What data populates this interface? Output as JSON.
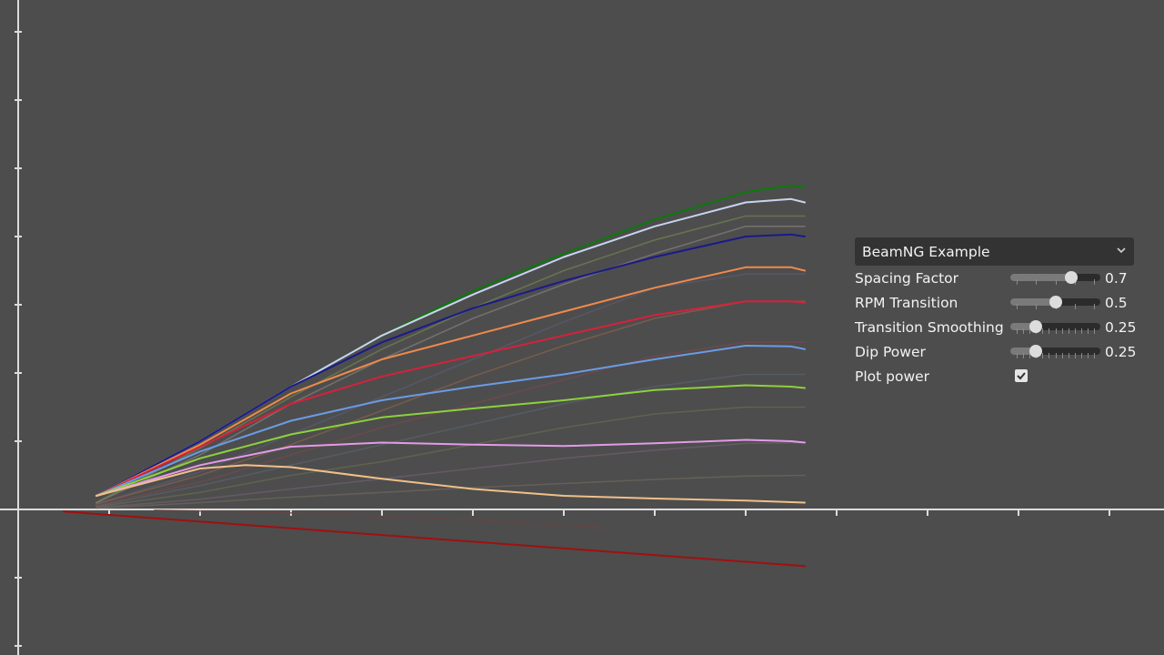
{
  "panel": {
    "dropdown_value": "BeamNG Example",
    "dropdown_icon": "chevron-down-icon",
    "params": [
      {
        "label": "Spacing Factor",
        "value": "0.7",
        "level": 0.7,
        "ticks": 4
      },
      {
        "label": "RPM Transition",
        "value": "0.5",
        "level": 0.5,
        "ticks": 4
      },
      {
        "label": "Transition Smoothing",
        "value": "0.25",
        "level": 0.25,
        "ticks": 12
      },
      {
        "label": "Dip Power",
        "value": "0.25",
        "level": 0.25,
        "ticks": 12
      }
    ],
    "plot_power": {
      "label": "Plot power",
      "checked": true
    }
  },
  "chart_data": {
    "type": "line",
    "title": "",
    "xlabel": "",
    "ylabel": "",
    "grid": false,
    "xlim": [
      0,
      12
    ],
    "ylim": [
      -2,
      7
    ],
    "series": [
      {
        "color": "#0a7a0a",
        "x": [
          0.86,
          2,
          3,
          4,
          5,
          6,
          7,
          8,
          8.5,
          8.65
        ],
        "y": [
          0.2,
          1.0,
          1.8,
          2.55,
          3.2,
          3.75,
          4.25,
          4.65,
          4.75,
          4.72
        ]
      },
      {
        "color": "#c8d4f0",
        "x": [
          0.86,
          2,
          3,
          4,
          5,
          6,
          7,
          8,
          8.5,
          8.65
        ],
        "y": [
          0.2,
          1.0,
          1.8,
          2.55,
          3.15,
          3.7,
          4.15,
          4.5,
          4.55,
          4.5
        ]
      },
      {
        "color": "#1a1a8c",
        "x": [
          0.86,
          2,
          3,
          4,
          5,
          6,
          7,
          8,
          8.5,
          8.65
        ],
        "y": [
          0.2,
          1.0,
          1.8,
          2.45,
          2.95,
          3.35,
          3.7,
          4.0,
          4.03,
          4.0
        ]
      },
      {
        "color": "#f08a4b",
        "x": [
          0.86,
          2,
          3,
          4,
          5,
          6,
          7,
          8,
          8.5,
          8.65
        ],
        "y": [
          0.2,
          0.95,
          1.7,
          2.2,
          2.55,
          2.9,
          3.25,
          3.55,
          3.55,
          3.5
        ]
      },
      {
        "color": "#d8203c",
        "x": [
          0.86,
          2,
          3,
          4,
          5,
          6,
          7,
          8,
          8.5,
          8.65
        ],
        "y": [
          0.2,
          0.92,
          1.55,
          1.95,
          2.25,
          2.55,
          2.85,
          3.05,
          3.05,
          3.03
        ]
      },
      {
        "color": "#6b9be6",
        "x": [
          0.86,
          2,
          3,
          4,
          5,
          6,
          7,
          8,
          8.5,
          8.65
        ],
        "y": [
          0.2,
          0.85,
          1.3,
          1.6,
          1.8,
          1.98,
          2.2,
          2.4,
          2.39,
          2.35
        ]
      },
      {
        "color": "#8cd23c",
        "x": [
          0.86,
          2,
          3,
          4,
          5,
          6,
          7,
          8,
          8.5,
          8.65
        ],
        "y": [
          0.2,
          0.75,
          1.1,
          1.35,
          1.48,
          1.6,
          1.75,
          1.82,
          1.8,
          1.78
        ]
      },
      {
        "color": "#e29be6",
        "x": [
          0.86,
          2,
          3,
          4,
          5,
          6,
          7,
          8,
          8.5,
          8.65
        ],
        "y": [
          0.2,
          0.65,
          0.92,
          0.98,
          0.95,
          0.93,
          0.97,
          1.02,
          1.0,
          0.98
        ]
      },
      {
        "color": "#f0c08a",
        "x": [
          0.86,
          2,
          2.5,
          3,
          4,
          5,
          6,
          7,
          8,
          8.65
        ],
        "y": [
          0.2,
          0.6,
          0.65,
          0.62,
          0.45,
          0.3,
          0.2,
          0.16,
          0.13,
          0.1
        ]
      },
      {
        "color": "#a01010",
        "x": [
          0.5,
          8.65
        ],
        "y": [
          -0.03,
          -0.83
        ]
      },
      {
        "color": "#708050",
        "faded": true,
        "x": [
          0.86,
          2,
          3,
          4,
          5,
          6,
          7,
          8,
          8.65
        ],
        "y": [
          0.1,
          0.9,
          1.65,
          2.35,
          2.95,
          3.5,
          3.95,
          4.3,
          4.3
        ]
      },
      {
        "color": "#807c78",
        "faded": true,
        "x": [
          0.86,
          2,
          3,
          4,
          5,
          6,
          7,
          8,
          8.65
        ],
        "y": [
          0.1,
          0.8,
          1.55,
          2.2,
          2.8,
          3.3,
          3.75,
          4.15,
          4.15
        ]
      },
      {
        "color": "#5a5a70",
        "faded": true,
        "x": [
          0.86,
          2,
          3,
          4,
          5,
          6,
          7,
          8,
          8.65
        ],
        "y": [
          0.08,
          0.55,
          1.1,
          1.65,
          2.2,
          2.75,
          3.25,
          3.45,
          3.45
        ]
      },
      {
        "color": "#86604c",
        "faded": true,
        "x": [
          0.86,
          2,
          3,
          4,
          5,
          6,
          7,
          8,
          8.65
        ],
        "y": [
          0.08,
          0.5,
          0.95,
          1.45,
          1.95,
          2.4,
          2.8,
          3.05,
          3.05
        ]
      },
      {
        "color": "#76484e",
        "faded": true,
        "x": [
          0.86,
          2,
          3,
          4,
          5,
          6,
          7,
          8,
          8.65
        ],
        "y": [
          0.06,
          0.4,
          0.8,
          1.2,
          1.55,
          1.9,
          2.25,
          2.45,
          2.45
        ]
      },
      {
        "color": "#58606c",
        "faded": true,
        "x": [
          0.86,
          2,
          3,
          4,
          5,
          6,
          7,
          8,
          8.65
        ],
        "y": [
          0.05,
          0.35,
          0.65,
          0.95,
          1.25,
          1.55,
          1.8,
          1.98,
          1.98
        ]
      },
      {
        "color": "#666a50",
        "faded": true,
        "x": [
          0.86,
          2,
          3,
          4,
          5,
          6,
          7,
          8,
          8.65
        ],
        "y": [
          0.04,
          0.25,
          0.5,
          0.7,
          0.95,
          1.2,
          1.4,
          1.5,
          1.5
        ]
      },
      {
        "color": "#6c5e6e",
        "faded": true,
        "x": [
          0.86,
          2,
          3,
          4,
          5,
          6,
          7,
          8,
          8.65
        ],
        "y": [
          0.03,
          0.15,
          0.3,
          0.45,
          0.6,
          0.75,
          0.87,
          0.97,
          0.98
        ]
      },
      {
        "color": "#6c665c",
        "faded": true,
        "x": [
          0.86,
          2,
          3,
          4,
          5,
          6,
          7,
          8,
          8.65
        ],
        "y": [
          0.02,
          0.1,
          0.18,
          0.25,
          0.32,
          0.38,
          0.44,
          0.49,
          0.5
        ]
      },
      {
        "color": "#6a4444",
        "faded": true,
        "x": [
          1.5,
          3,
          4,
          5,
          6.5
        ],
        "y": [
          -0.01,
          -0.05,
          -0.1,
          -0.15,
          -0.27
        ]
      }
    ]
  }
}
